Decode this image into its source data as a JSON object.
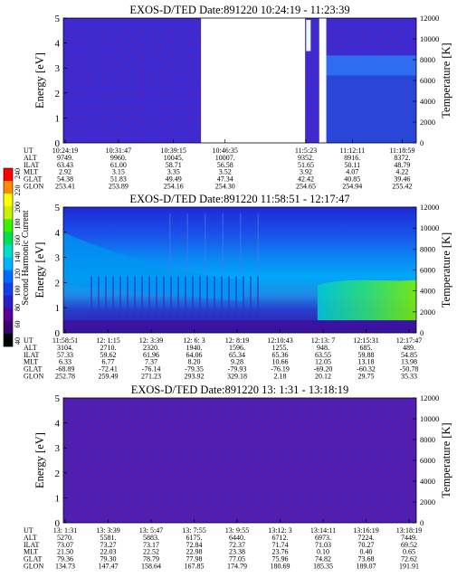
{
  "colorbar": {
    "label": "Second Harmonic Current",
    "ticks": [
      "40",
      "60",
      "80",
      "100",
      "120",
      "140",
      "160",
      "180",
      "200",
      "220",
      "240"
    ],
    "colors": [
      "#000000",
      "#3a006e",
      "#5a0096",
      "#2a1ec8",
      "#1440e6",
      "#006cff",
      "#00b4ff",
      "#00e0c8",
      "#00e050",
      "#3cf000",
      "#c8f000",
      "#ffff00",
      "#ff8c00",
      "#ff0000"
    ]
  },
  "chart_data": [
    {
      "type": "heatmap",
      "title": "EXOS-D/TED   Date:891220   10:24:19 - 11:23:39",
      "ylabel": "Energy [eV]",
      "y2label": "Temperature [K]",
      "ylim": [
        0,
        5
      ],
      "y2lim": [
        0,
        12000
      ],
      "yticks": [
        "0",
        "1",
        "2",
        "3",
        "4",
        "5"
      ],
      "y2ticks": [
        "0",
        "2000",
        "4000",
        "6000",
        "8000",
        "10000",
        "12000"
      ],
      "gaps": [
        [
          0.39,
          0.685
        ],
        [
          0.725,
          0.745
        ]
      ],
      "ephemeris": {
        "labels": [
          "UT",
          "ALT",
          "ILAT",
          "MLT",
          "GLAT",
          "GLON"
        ],
        "columns": [
          [
            "10:24:19",
            "9749.",
            "63.43",
            "2.92",
            "54.38",
            "253.41"
          ],
          [
            "10:31:47",
            "9960.",
            "61.00",
            "3.15",
            "51.83",
            "253.89"
          ],
          [
            "10:39:15",
            "10045.",
            "58.71",
            "3.35",
            "49.49",
            "254.16"
          ],
          [
            "10:46:35",
            "10007.",
            "56.58",
            "3.52",
            "47.34",
            "254.30"
          ],
          [
            "11:5:23",
            "9352.",
            "51.65",
            "3.92",
            "42.42",
            "254.65"
          ],
          [
            "11:12:11",
            "8916.",
            "50.11",
            "4.07",
            "40.85",
            "254.94"
          ],
          [
            "11:18:59",
            "8372.",
            "48.79",
            "4.22",
            "39.46",
            "255.42"
          ]
        ]
      }
    },
    {
      "type": "heatmap",
      "title": "EXOS-D/TED   Date:891220   11:58:51 - 12:17:47",
      "ylabel": "Energy [eV]",
      "y2label": "Temperature [K]",
      "ylim": [
        0,
        5
      ],
      "y2lim": [
        0,
        12000
      ],
      "yticks": [
        "0",
        "1",
        "2",
        "3",
        "4",
        "5"
      ],
      "y2ticks": [
        "0",
        "2000",
        "4000",
        "6000",
        "8000",
        "10000",
        "12000"
      ],
      "ephemeris": {
        "labels": [
          "UT",
          "ALT",
          "ILAT",
          "MLT",
          "GLAT",
          "GLON"
        ],
        "columns": [
          [
            "11:58:51",
            "3104.",
            "57.33",
            "6.33",
            "-68.89",
            "252.78"
          ],
          [
            "12: 1:15",
            "2710.",
            "59.62",
            "6.77",
            "-72.41",
            "259.49"
          ],
          [
            "12: 3:39",
            "2320.",
            "61.96",
            "7.37",
            "-76.14",
            "271.23"
          ],
          [
            "12: 6: 3",
            "1940.",
            "64.06",
            "8.20",
            "-79.35",
            "293.92"
          ],
          [
            "12: 8:19",
            "1596.",
            "65.34",
            "9.28",
            "-79.93",
            "329.18"
          ],
          [
            "12:10:43",
            "1255.",
            "65.36",
            "10.66",
            "-76.19",
            "2.18"
          ],
          [
            "12:13: 7",
            "948.",
            "63.55",
            "12.05",
            "-69.20",
            "20.12"
          ],
          [
            "12:15:31",
            "685.",
            "59.88",
            "13.18",
            "-60.32",
            "29.75"
          ],
          [
            "12:17:47",
            "489.",
            "54.85",
            "13.98",
            "-50.78",
            "35.33"
          ]
        ]
      }
    },
    {
      "type": "heatmap",
      "title": "EXOS-D/TED   Date:891220   13: 1:31 - 13:18:19",
      "ylabel": "Energy [eV]",
      "y2label": "Temperature [K]",
      "ylim": [
        0,
        5
      ],
      "y2lim": [
        0,
        12000
      ],
      "yticks": [
        "0",
        "1",
        "2",
        "3",
        "4",
        "5"
      ],
      "y2ticks": [
        "0",
        "2000",
        "4000",
        "6000",
        "8000",
        "10000",
        "12000"
      ],
      "ephemeris": {
        "labels": [
          "UT",
          "ALT",
          "ILAT",
          "MLT",
          "GLAT",
          "GLON"
        ],
        "columns": [
          [
            "13: 1:31",
            "5270.",
            "73.07",
            "21.50",
            "79.36",
            "134.73"
          ],
          [
            "13: 3:39",
            "5581.",
            "73.27",
            "22.03",
            "79.30",
            "147.47"
          ],
          [
            "13: 5:47",
            "5883.",
            "73.17",
            "22.52",
            "78.79",
            "158.64"
          ],
          [
            "13: 7:55",
            "6175.",
            "72.84",
            "22.98",
            "77.98",
            "167.85"
          ],
          [
            "13: 9:55",
            "6440.",
            "72.37",
            "23.38",
            "77.05",
            "174.79"
          ],
          [
            "13:12: 3",
            "6712.",
            "71.74",
            "23.76",
            "75.96",
            "180.69"
          ],
          [
            "13:14:11",
            "6973.",
            "71.03",
            "0.10",
            "74.82",
            "185.35"
          ],
          [
            "13:16:19",
            "7224.",
            "70.27",
            "0.40",
            "73.68",
            "189.07"
          ],
          [
            "13:18:19",
            "7449.",
            "69.52",
            "0.65",
            "72.62",
            "191.91"
          ]
        ]
      }
    }
  ]
}
